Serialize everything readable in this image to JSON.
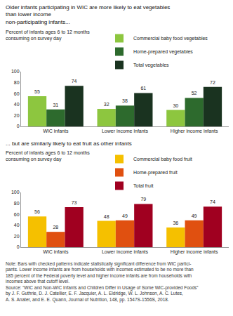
{
  "chart_data": [
    {
      "type": "bar",
      "title": "Older infants participating in WIC are more likely to eat vegetables than lower income\nnon-participating infants...",
      "ylabel": "Percent of infants ages 6 to 12 months\nconsuming on survey day",
      "categories": [
        "WIC infants",
        "Lower income infants",
        "Higher income infants"
      ],
      "series": [
        {
          "name": "Commercial baby food vegetables",
          "color": "#8dc63f",
          "values": [
            55,
            32,
            30
          ]
        },
        {
          "name": "Home-prepared vegetables",
          "color": "#2d6a2d",
          "values": [
            31,
            38,
            52
          ]
        },
        {
          "name": "Total vegetables",
          "color": "#1a3320",
          "values": [
            74,
            61,
            72
          ]
        }
      ],
      "ylim": [
        0,
        100
      ],
      "yticks": [
        0,
        20,
        40,
        60,
        80,
        100
      ],
      "grid": false,
      "data_labels": true,
      "legend": "upper right"
    },
    {
      "type": "bar",
      "title": "... but are similarly likely to eat fruit as other infants",
      "ylabel": "Percent of infants ages 6 to 12 months\nconsuming on survey day",
      "categories": [
        "WIC infants",
        "Lower income infants",
        "Higher income infants"
      ],
      "series": [
        {
          "name": "Commercial baby food fruit",
          "color": "#f5c000",
          "values": [
            56,
            48,
            36
          ]
        },
        {
          "name": "Home-prepared fruit",
          "color": "#e05010",
          "values": [
            28,
            49,
            49
          ]
        },
        {
          "name": "Total fruit",
          "color": "#a00020",
          "values": [
            73,
            79,
            74
          ]
        }
      ],
      "ylim": [
        0,
        100
      ],
      "yticks": [
        0,
        20,
        40,
        60,
        80,
        100
      ],
      "grid": false,
      "data_labels": true,
      "legend": "upper right",
      "annotations": [
        "Note: Bars with checked patterns indicate statistically significant difference from WIC partici-\npants. Lower income infants are from households with incomes estimated to be no more than\n185 percent of the Federal poverty level and higher income infants are from households with\nincomes above that cutoff level.\nSource: “WIC and Non-WIC Infants and Children Differ in Usage of Some WIC-provided Foods”\nby J. F. Guthrie, D. J. Catellier, E. F. Jacquier, A. L. Eldridge, W. L. Johnson, A. C. Lutes,\nA. S. Anater, and E. E. Quann, Journal of Nutrition, 148, pp. 1547S-1556S, 2018."
      ]
    }
  ]
}
